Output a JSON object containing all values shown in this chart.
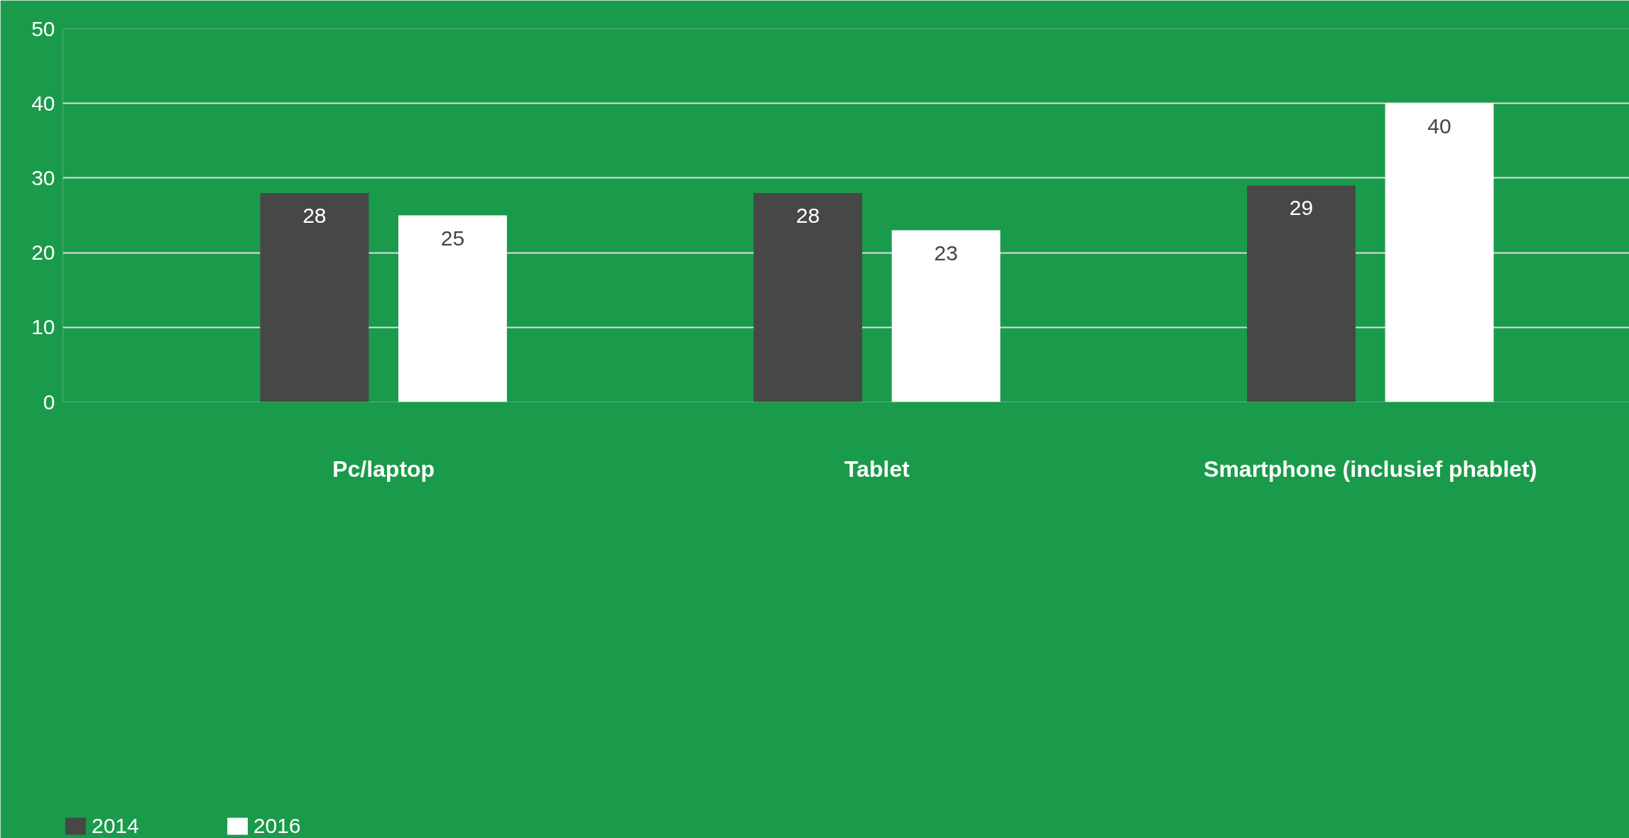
{
  "chart_data": {
    "type": "bar",
    "categories": [
      "Pc/laptop",
      "Tablet",
      "Smartphone (inclusief phablet)"
    ],
    "series": [
      {
        "name": "2014",
        "color": "#474747",
        "values": [
          28,
          28,
          29
        ]
      },
      {
        "name": "2016",
        "color": "#ffffff",
        "values": [
          25,
          23,
          40
        ]
      }
    ],
    "ylim": [
      0,
      50
    ],
    "yticks": [
      0,
      10,
      20,
      30,
      40,
      50
    ],
    "grid": "y",
    "legend": "bottom left",
    "data_labels": true
  }
}
